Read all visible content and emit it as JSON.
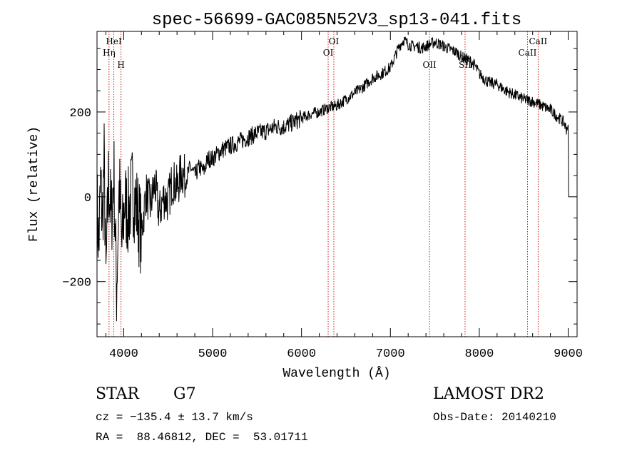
{
  "chart_data": {
    "type": "line",
    "title": "spec-56699-GAC085N52V3_sp13-041.fits",
    "xlabel": "Wavelength (Å)",
    "ylabel": "Flux (relative)",
    "xlim": [
      3700,
      9100
    ],
    "ylim": [
      -330,
      390
    ],
    "x_ticks": [
      4000,
      5000,
      6000,
      7000,
      8000,
      9000
    ],
    "x_tick_labels": [
      "4000",
      "5000",
      "6000",
      "7000",
      "8000",
      "9000"
    ],
    "y_ticks": [
      -200,
      0,
      200
    ],
    "y_tick_labels": [
      "−200",
      "0",
      "200"
    ],
    "line_color": "#000000",
    "marker_color": "#cc2222",
    "series": [
      {
        "name": "Flux",
        "x": [
          3700,
          3720,
          3740,
          3760,
          3780,
          3800,
          3830,
          3860,
          3890,
          3920,
          3950,
          3980,
          4010,
          4050,
          4100,
          4150,
          4200,
          4250,
          4300,
          4350,
          4400,
          4450,
          4500,
          4550,
          4600,
          4650,
          4700,
          4750,
          4800,
          4850,
          4900,
          4950,
          5000,
          5100,
          5200,
          5300,
          5400,
          5500,
          5600,
          5700,
          5800,
          5900,
          6000,
          6100,
          6200,
          6300,
          6400,
          6500,
          6600,
          6700,
          6800,
          6900,
          7000,
          7050,
          7100,
          7150,
          7200,
          7250,
          7300,
          7350,
          7400,
          7450,
          7500,
          7550,
          7600,
          7650,
          7700,
          7750,
          7800,
          7850,
          7900,
          7950,
          8000,
          8100,
          8200,
          8300,
          8400,
          8500,
          8600,
          8700,
          8800,
          8850,
          8900,
          8950,
          8980,
          9000,
          9010
        ],
        "y": [
          -20,
          -120,
          30,
          -60,
          80,
          -200,
          50,
          -60,
          60,
          -220,
          30,
          -120,
          -10,
          -40,
          20,
          -30,
          -90,
          10,
          -20,
          30,
          -40,
          0,
          -10,
          40,
          20,
          60,
          40,
          70,
          50,
          70,
          60,
          90,
          90,
          110,
          120,
          130,
          140,
          150,
          155,
          165,
          165,
          175,
          185,
          195,
          200,
          210,
          215,
          230,
          245,
          260,
          280,
          290,
          305,
          330,
          355,
          370,
          360,
          355,
          355,
          350,
          355,
          360,
          365,
          360,
          355,
          350,
          345,
          340,
          330,
          325,
          320,
          310,
          290,
          270,
          265,
          250,
          240,
          230,
          225,
          215,
          205,
          195,
          185,
          175,
          160,
          170,
          0
        ]
      }
    ],
    "line_markers": [
      {
        "label": "Hη",
        "wavelength": 3835,
        "label_level": "mid"
      },
      {
        "label": "HeI",
        "wavelength": 3889,
        "label_level": "top"
      },
      {
        "label": "H",
        "wavelength": 3970,
        "label_level": "low"
      },
      {
        "label": "OI",
        "wavelength": 6300,
        "label_level": "mid"
      },
      {
        "label": "OI",
        "wavelength": 6364,
        "label_level": "top"
      },
      {
        "label": "OII",
        "wavelength": 7440,
        "label_level": "low"
      },
      {
        "label": "SII",
        "wavelength": 7840,
        "label_level": "low"
      },
      {
        "label": "CaII",
        "wavelength": 8542,
        "label_level": "mid"
      },
      {
        "label": "CaII",
        "wavelength": 8662,
        "label_level": "top"
      }
    ]
  },
  "info": {
    "object_class": "STAR",
    "subclass": "G7",
    "survey": "LAMOST DR2",
    "redshift_line": "cz = −135.4 ± 13.7 km/s",
    "obs_date_line": "Obs-Date: 20140210",
    "coords_line": "RA =  88.46812, DEC =  53.01711"
  }
}
